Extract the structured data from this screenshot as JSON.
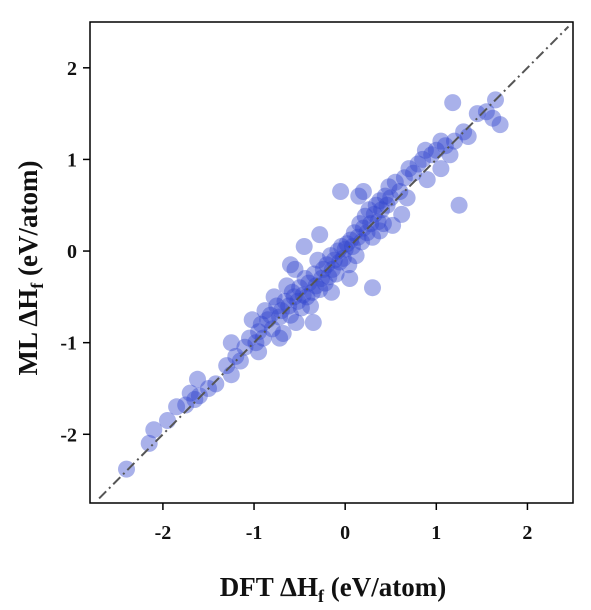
{
  "chart_data": {
    "type": "scatter",
    "title": "",
    "xlabel": {
      "main": "DFT ΔH",
      "sub": "f",
      "unit": " (eV/atom)"
    },
    "ylabel": {
      "main": "ML ΔH",
      "sub": "f",
      "unit": " (eV/atom)"
    },
    "xlim": [
      -2.8,
      2.5
    ],
    "ylim": [
      -2.75,
      2.5
    ],
    "xticks": [
      -2,
      -1,
      0,
      1,
      2
    ],
    "yticks": [
      -2,
      -1,
      0,
      1,
      2
    ],
    "reference_line": {
      "style": "dash-dot",
      "color": "#555555",
      "from": [
        -2.7,
        -2.7
      ],
      "to": [
        2.45,
        2.45
      ]
    },
    "marker_color": "#3344cc",
    "marker_opacity": 0.42,
    "points": [
      [
        -2.4,
        -2.38
      ],
      [
        -2.15,
        -2.1
      ],
      [
        -2.1,
        -1.95
      ],
      [
        -1.95,
        -1.85
      ],
      [
        -1.85,
        -1.7
      ],
      [
        -1.75,
        -1.68
      ],
      [
        -1.7,
        -1.55
      ],
      [
        -1.65,
        -1.62
      ],
      [
        -1.62,
        -1.4
      ],
      [
        -1.5,
        -1.5
      ],
      [
        -1.42,
        -1.45
      ],
      [
        -1.3,
        -1.25
      ],
      [
        -1.25,
        -1.0
      ],
      [
        -1.2,
        -1.15
      ],
      [
        -1.15,
        -1.2
      ],
      [
        -1.1,
        -1.05
      ],
      [
        -1.05,
        -0.95
      ],
      [
        -1.02,
        -0.75
      ],
      [
        -0.98,
        -1.0
      ],
      [
        -0.95,
        -0.88
      ],
      [
        -0.92,
        -0.8
      ],
      [
        -0.9,
        -0.95
      ],
      [
        -0.88,
        -0.65
      ],
      [
        -0.85,
        -0.75
      ],
      [
        -0.82,
        -0.7
      ],
      [
        -0.8,
        -0.85
      ],
      [
        -0.78,
        -0.5
      ],
      [
        -0.75,
        -0.6
      ],
      [
        -0.72,
        -0.72
      ],
      [
        -0.7,
        -0.65
      ],
      [
        -0.68,
        -0.9
      ],
      [
        -0.66,
        -0.55
      ],
      [
        -0.64,
        -0.38
      ],
      [
        -0.62,
        -0.6
      ],
      [
        -0.6,
        -0.7
      ],
      [
        -0.58,
        -0.45
      ],
      [
        -0.56,
        -0.5
      ],
      [
        -0.54,
        -0.78
      ],
      [
        -0.52,
        -0.55
      ],
      [
        -0.5,
        -0.4
      ],
      [
        -0.48,
        -0.62
      ],
      [
        -0.46,
        -0.48
      ],
      [
        -0.44,
        -0.3
      ],
      [
        -0.42,
        -0.5
      ],
      [
        -0.4,
        -0.35
      ],
      [
        -0.38,
        -0.6
      ],
      [
        -0.36,
        -0.45
      ],
      [
        -0.34,
        -0.25
      ],
      [
        -0.32,
        -0.38
      ],
      [
        -0.3,
        -0.1
      ],
      [
        -0.28,
        -0.42
      ],
      [
        -0.26,
        -0.3
      ],
      [
        -0.24,
        -0.2
      ],
      [
        -0.22,
        -0.35
      ],
      [
        -0.2,
        -0.15
      ],
      [
        -0.18,
        -0.28
      ],
      [
        -0.16,
        -0.05
      ],
      [
        -0.14,
        -0.2
      ],
      [
        -0.12,
        -0.1
      ],
      [
        -0.1,
        -0.25
      ],
      [
        -0.08,
        0.0
      ],
      [
        -0.06,
        -0.12
      ],
      [
        -0.04,
        0.05
      ],
      [
        -0.02,
        -0.08
      ],
      [
        0.0,
        0.02
      ],
      [
        0.02,
        0.08
      ],
      [
        0.04,
        -0.15
      ],
      [
        0.06,
        0.12
      ],
      [
        0.08,
        0.05
      ],
      [
        0.1,
        0.2
      ],
      [
        0.12,
        -0.05
      ],
      [
        0.14,
        0.15
      ],
      [
        0.16,
        0.3
      ],
      [
        0.18,
        0.1
      ],
      [
        0.2,
        0.25
      ],
      [
        0.22,
        0.38
      ],
      [
        0.24,
        0.2
      ],
      [
        0.26,
        0.45
      ],
      [
        0.28,
        0.3
      ],
      [
        0.3,
        0.15
      ],
      [
        0.32,
        0.4
      ],
      [
        0.34,
        0.5
      ],
      [
        0.36,
        0.32
      ],
      [
        0.38,
        0.55
      ],
      [
        0.4,
        0.45
      ],
      [
        0.42,
        0.3
      ],
      [
        0.44,
        0.6
      ],
      [
        0.46,
        0.5
      ],
      [
        0.48,
        0.7
      ],
      [
        0.5,
        0.58
      ],
      [
        0.55,
        0.75
      ],
      [
        0.6,
        0.65
      ],
      [
        0.62,
        0.4
      ],
      [
        0.65,
        0.8
      ],
      [
        0.7,
        0.9
      ],
      [
        0.75,
        0.85
      ],
      [
        0.8,
        0.95
      ],
      [
        0.85,
        1.0
      ],
      [
        0.9,
        0.78
      ],
      [
        0.95,
        1.05
      ],
      [
        1.0,
        1.1
      ],
      [
        1.05,
        0.9
      ],
      [
        1.1,
        1.15
      ],
      [
        1.15,
        1.05
      ],
      [
        1.2,
        1.2
      ],
      [
        1.25,
        0.5
      ],
      [
        1.3,
        1.3
      ],
      [
        1.35,
        1.25
      ],
      [
        1.45,
        1.5
      ],
      [
        1.55,
        1.52
      ],
      [
        1.62,
        1.45
      ],
      [
        1.65,
        1.65
      ],
      [
        1.7,
        1.38
      ],
      [
        1.18,
        1.62
      ],
      [
        -0.05,
        0.65
      ],
      [
        -0.28,
        0.18
      ],
      [
        -0.45,
        0.05
      ],
      [
        0.3,
        -0.4
      ],
      [
        0.15,
        0.6
      ],
      [
        -0.6,
        -0.15
      ],
      [
        -0.72,
        -0.95
      ],
      [
        -0.95,
        -1.1
      ],
      [
        -0.35,
        -0.78
      ],
      [
        0.05,
        -0.3
      ],
      [
        0.52,
        0.28
      ],
      [
        0.68,
        0.58
      ],
      [
        -1.25,
        -1.35
      ],
      [
        -1.6,
        -1.58
      ],
      [
        0.2,
        0.65
      ],
      [
        0.88,
        1.1
      ],
      [
        1.05,
        1.2
      ],
      [
        -0.15,
        -0.45
      ],
      [
        -0.55,
        -0.2
      ],
      [
        0.38,
        0.22
      ]
    ]
  }
}
